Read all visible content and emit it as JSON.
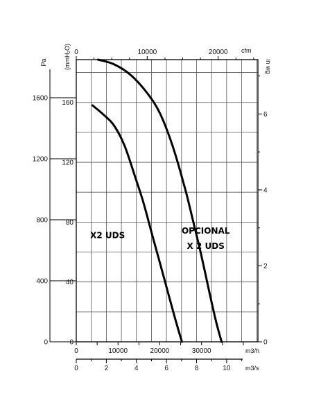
{
  "chart_data": {
    "type": "line",
    "title": "",
    "grid": true,
    "axes": {
      "left_pa": {
        "label": "Pa",
        "ylim": [
          0,
          1850
        ],
        "ticks": [
          0,
          400,
          800,
          1200,
          1600
        ],
        "tick_labels": [
          "0",
          "400",
          "800",
          "1200",
          "1600"
        ]
      },
      "left_mmh2o": {
        "label": "(mmH₂O)",
        "ylim": [
          0,
          188.6
        ],
        "ticks": [
          0,
          40,
          80,
          120,
          160
        ],
        "tick_labels": [
          "0",
          "40",
          "80",
          "120",
          "160"
        ]
      },
      "right_inwg": {
        "label": "in wg",
        "ylim": [
          0,
          7.43
        ],
        "ticks": [
          0,
          2,
          4,
          6
        ],
        "tick_labels": [
          "0",
          "2",
          "4",
          "6"
        ]
      },
      "top_cfm": {
        "label": "cfm",
        "xlim": [
          0,
          25600
        ],
        "ticks": [
          0,
          10000,
          20000
        ],
        "tick_labels": [
          "0",
          "10000",
          "20000"
        ]
      },
      "bottom_m3h": {
        "label": "m3/h",
        "xlim": [
          0,
          43500
        ],
        "ticks": [
          0,
          10000,
          20000,
          30000
        ],
        "tick_labels": [
          "0",
          "10000",
          "20000",
          "30000"
        ]
      },
      "bottom_m3s": {
        "label": "m3/s",
        "xlim": [
          0,
          12.08
        ],
        "ticks": [
          0,
          2,
          4,
          6,
          8,
          10
        ],
        "tick_labels": [
          "0",
          "2",
          "4",
          "6",
          "8",
          "10"
        ]
      }
    },
    "series": [
      {
        "name": "X2 UDS",
        "x_unit": "m3/h",
        "y_unit": "Pa",
        "x": [
          3900,
          6500,
          9000,
          11500,
          14000,
          16000,
          18000,
          20000,
          22000,
          24000,
          25300
        ],
        "y": [
          1550,
          1490,
          1420,
          1290,
          1090,
          920,
          720,
          520,
          320,
          120,
          0
        ]
      },
      {
        "name": "OPCIONAL X 2 UDS",
        "x_unit": "m3/h",
        "y_unit": "Pa",
        "x": [
          5200,
          9000,
          13000,
          17000,
          20000,
          23000,
          26000,
          28000,
          30000,
          32000,
          33500,
          34800
        ],
        "y": [
          1850,
          1820,
          1750,
          1630,
          1500,
          1290,
          1010,
          790,
          560,
          310,
          130,
          0
        ]
      }
    ],
    "annotations": [
      {
        "text": "X2 UDS",
        "x": 7500,
        "y": 680
      },
      {
        "text": "OPCIONAL",
        "x": 31000,
        "y": 710
      },
      {
        "text": "X 2 UDS",
        "x": 31000,
        "y": 610
      }
    ]
  }
}
